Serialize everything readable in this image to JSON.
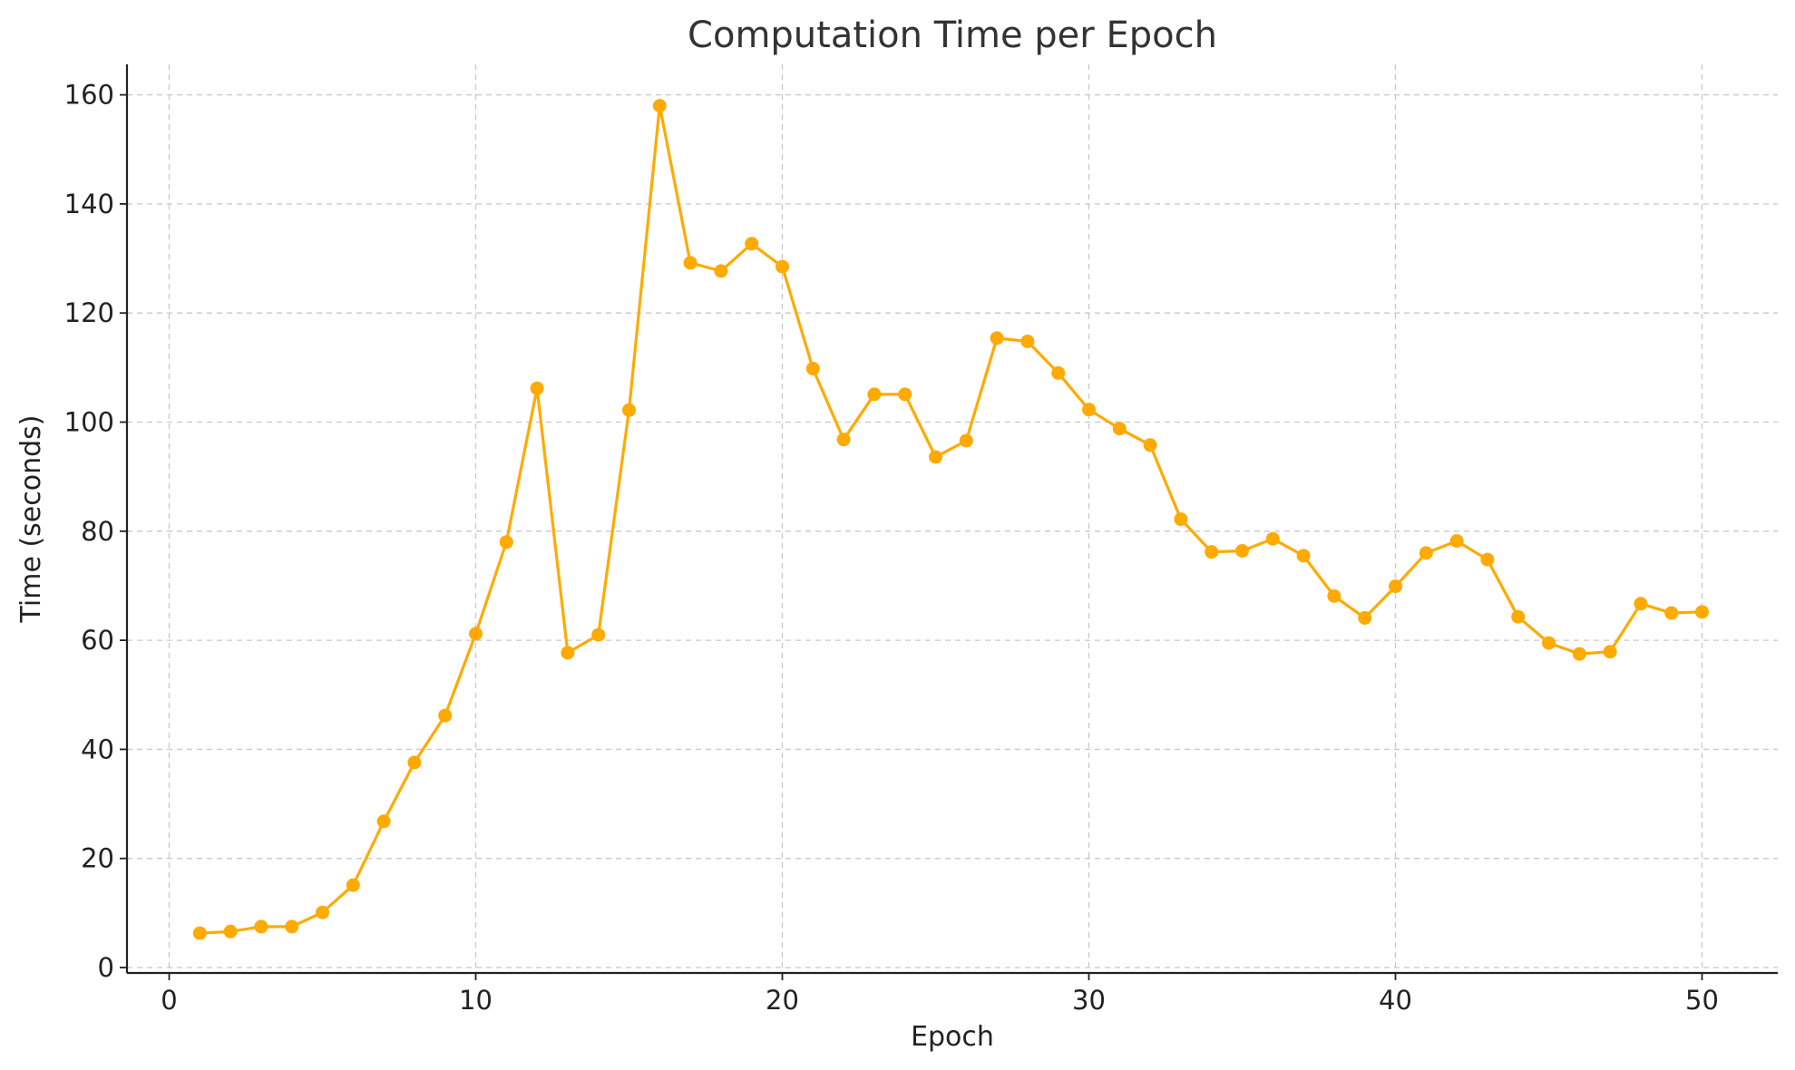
{
  "chart_data": {
    "type": "line",
    "title": "Computation Time per Epoch",
    "xlabel": "Epoch",
    "ylabel": "Time (seconds)",
    "xlim": [
      -1.3,
      52.5
    ],
    "ylim": [
      -1,
      166
    ],
    "x_ticks": [
      0,
      10,
      20,
      30,
      40,
      50
    ],
    "y_ticks": [
      0,
      20,
      40,
      60,
      80,
      100,
      120,
      140,
      160
    ],
    "grid": true,
    "color": "#FFAA00",
    "series": [
      {
        "x": [
          1,
          2,
          3,
          4,
          5,
          6,
          7,
          8,
          9,
          10,
          11,
          12,
          13,
          14,
          15,
          16,
          17,
          18,
          19,
          20,
          21,
          22,
          23,
          24,
          25,
          26,
          27,
          28,
          29,
          30,
          31,
          32,
          33,
          34,
          35,
          36,
          37,
          38,
          39,
          40,
          41,
          42,
          43,
          44,
          45,
          46,
          47,
          48,
          49,
          50
        ],
        "y": [
          6.3,
          6.6,
          7.5,
          7.5,
          10.1,
          15.1,
          26.8,
          37.6,
          46.2,
          61.2,
          78.0,
          106.2,
          57.7,
          61.0,
          102.2,
          158.0,
          129.2,
          127.7,
          132.7,
          128.5,
          109.8,
          96.8,
          105.1,
          105.1,
          93.6,
          96.6,
          115.4,
          114.8,
          109.0,
          102.3,
          98.8,
          95.8,
          82.2,
          76.2,
          76.4,
          78.6,
          75.5,
          68.1,
          64.1,
          69.9,
          76.0,
          78.2,
          74.8,
          64.3,
          59.5,
          57.5,
          57.9,
          66.7,
          65.0,
          65.2
        ]
      }
    ]
  }
}
